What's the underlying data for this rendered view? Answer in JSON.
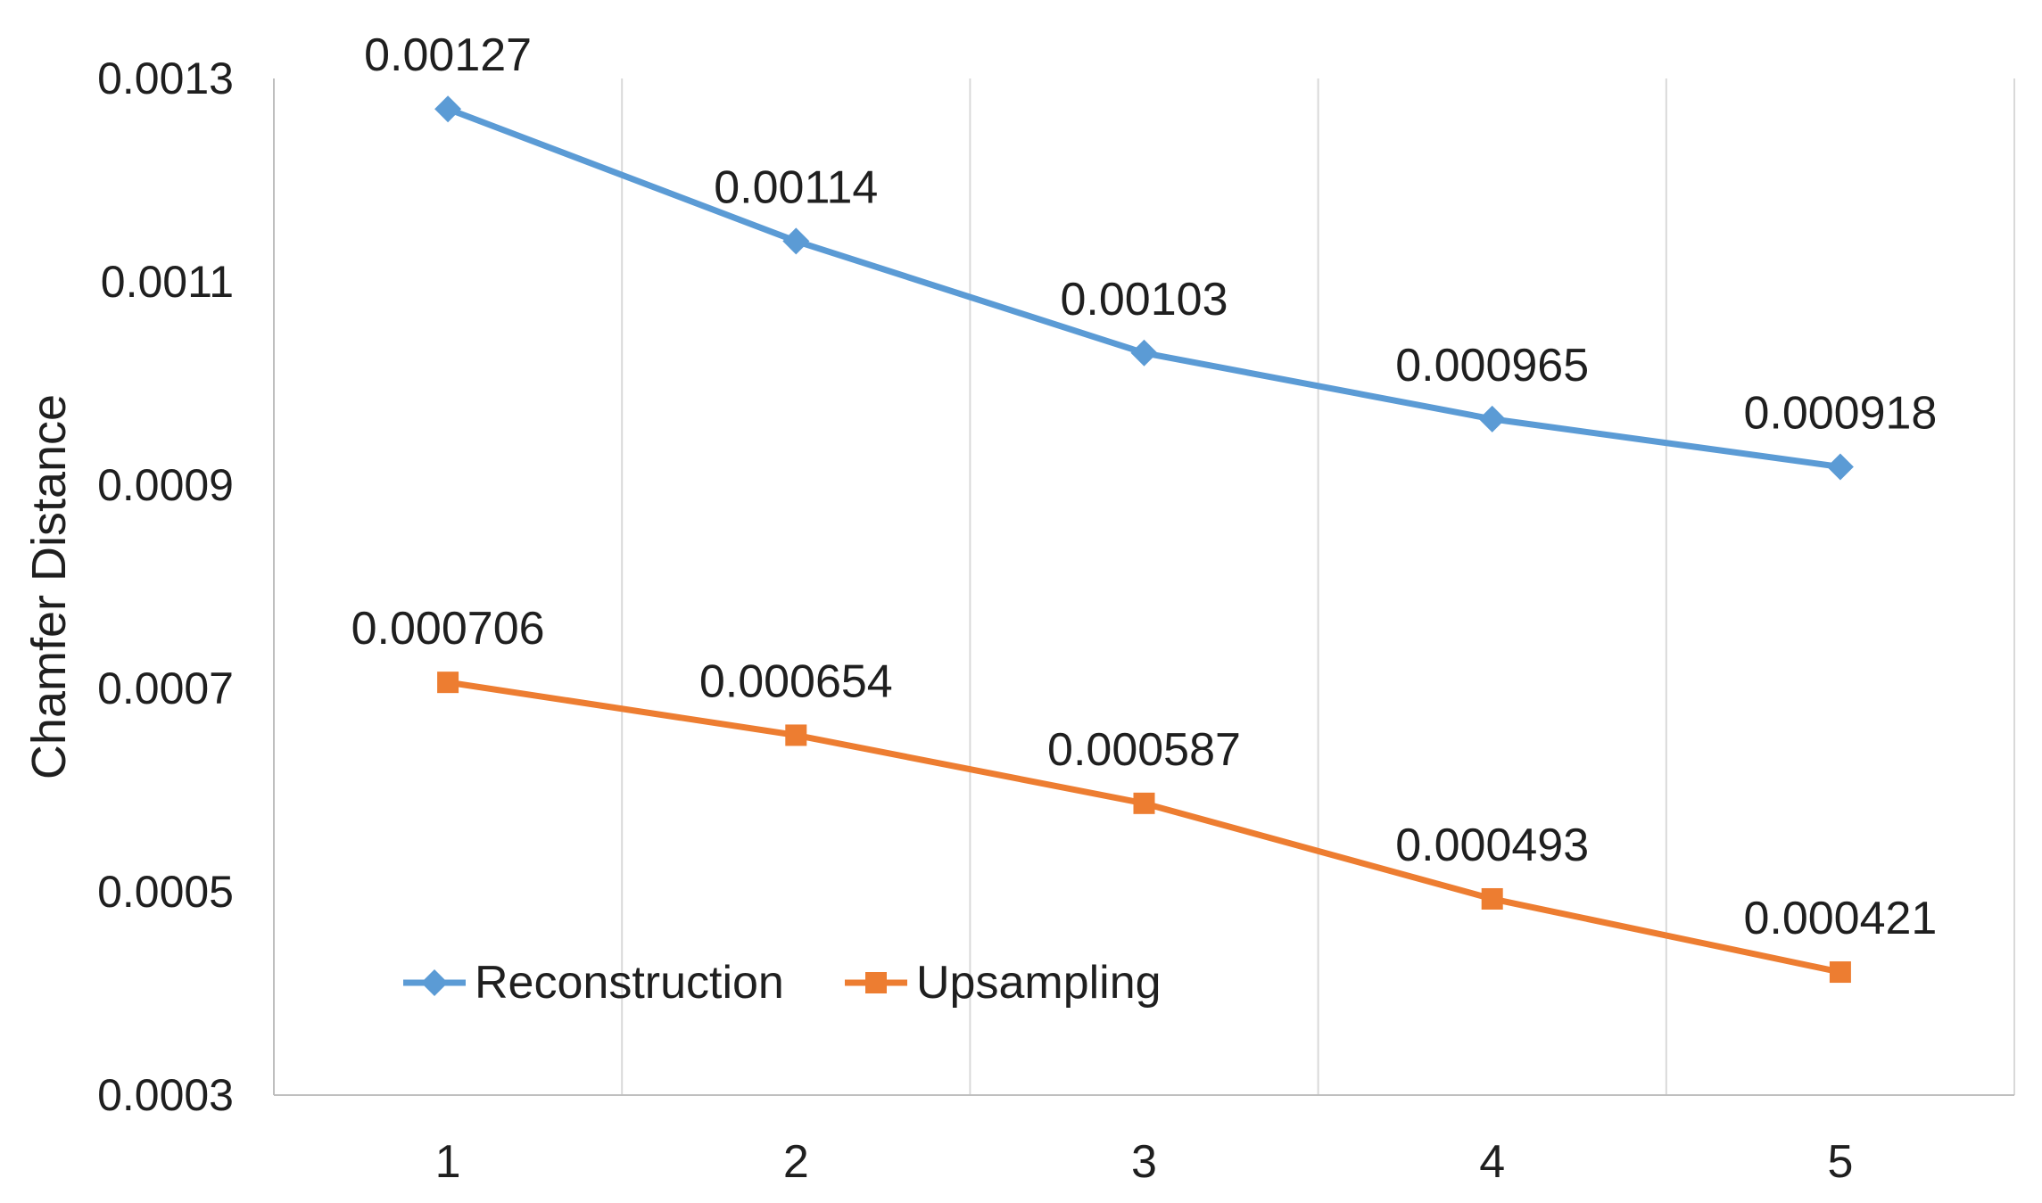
{
  "chart_data": {
    "type": "line",
    "title": "",
    "xlabel": "",
    "ylabel": "Chamfer Distance",
    "x": [
      1,
      2,
      3,
      4,
      5
    ],
    "x_tick_labels": [
      "1",
      "2",
      "3",
      "4",
      "5"
    ],
    "y_axis": {
      "min": 0.0003,
      "max": 0.0013,
      "step": 0.0002,
      "tick_labels": [
        "0.0003",
        "0.0005",
        "0.0007",
        "0.0009",
        "0.0011",
        "0.0013"
      ]
    },
    "series": [
      {
        "name": "Reconstruction",
        "marker": "diamond",
        "color": "#5B9BD5",
        "values": [
          0.00127,
          0.00114,
          0.00103,
          0.000965,
          0.000918
        ],
        "labels": [
          "0.00127",
          "0.00114",
          "0.00103",
          "0.000965",
          "0.000918"
        ]
      },
      {
        "name": "Upsampling",
        "marker": "square",
        "color": "#ED7D31",
        "values": [
          0.000706,
          0.000654,
          0.000587,
          0.000493,
          0.000421
        ],
        "labels": [
          "0.000706",
          "0.000654",
          "0.000587",
          "0.000493",
          "0.000421"
        ]
      }
    ],
    "grid": "vertical-only",
    "legend_position": "inside-bottom-left",
    "colors": {
      "gridline": "#D9D9D9",
      "axis_line": "#BFBFBF",
      "text": "#1f1f1f"
    }
  }
}
